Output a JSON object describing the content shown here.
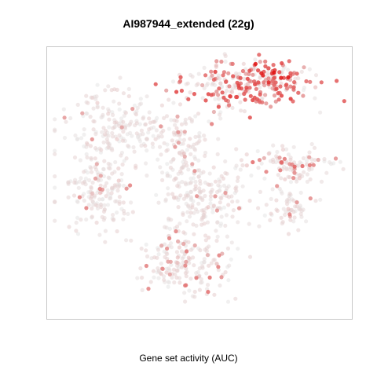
{
  "chart_data": {
    "type": "scatter",
    "title": "AI987944_extended (22g)",
    "xlabel": "Gene set activity (AUC)",
    "ylabel": "",
    "xlim": [
      0,
      100
    ],
    "ylim": [
      0,
      100
    ],
    "grid": false,
    "legend": "none",
    "axes_ticks": false,
    "color_scale": {
      "low": "#e6e6e6",
      "high": "#e00000",
      "value_range": [
        0,
        1
      ]
    },
    "clusters": [
      {
        "name": "top-right",
        "cx": 66,
        "cy": 87,
        "sx": 12,
        "sy": 5,
        "n": 260,
        "activity": 0.55
      },
      {
        "name": "top-right-hot",
        "cx": 73,
        "cy": 89,
        "sx": 4,
        "sy": 3,
        "n": 40,
        "activity": 0.9
      },
      {
        "name": "left-upper",
        "cx": 24,
        "cy": 70,
        "sx": 9,
        "sy": 7,
        "n": 220,
        "activity": 0.08
      },
      {
        "name": "left-lower",
        "cx": 17,
        "cy": 47,
        "sx": 6,
        "sy": 7,
        "n": 170,
        "activity": 0.1
      },
      {
        "name": "center-left",
        "cx": 45,
        "cy": 63,
        "sx": 4,
        "sy": 7,
        "n": 90,
        "activity": 0.06
      },
      {
        "name": "center",
        "cx": 53,
        "cy": 45,
        "sx": 7,
        "sy": 8,
        "n": 200,
        "activity": 0.07
      },
      {
        "name": "right-arm",
        "cx": 81,
        "cy": 57,
        "sx": 8,
        "sy": 3,
        "n": 100,
        "activity": 0.3
      },
      {
        "name": "right-lower",
        "cx": 80,
        "cy": 42,
        "sx": 4,
        "sy": 5,
        "n": 70,
        "activity": 0.12
      },
      {
        "name": "bottom",
        "cx": 45,
        "cy": 20,
        "sx": 8,
        "sy": 6,
        "n": 190,
        "activity": 0.22
      }
    ]
  }
}
